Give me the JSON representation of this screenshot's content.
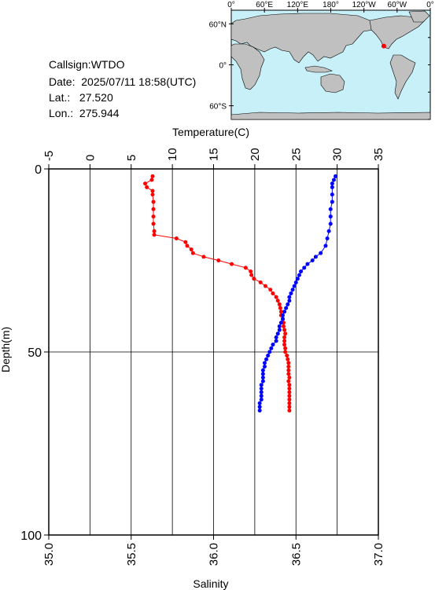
{
  "station": {
    "callsign_label": "Callsign:",
    "callsign": "WTDO",
    "date_label": "Date:",
    "date": "2025/07/11 18:58(UTC)",
    "lat_label": "Lat.:",
    "lat": "27.520",
    "lon_label": "Lon.:",
    "lon": "275.944"
  },
  "map": {
    "top_ticks": [
      "0°",
      "60°E",
      "120°E",
      "180°",
      "120°W",
      "60°W",
      "0°"
    ],
    "left_ticks": [
      "60°N",
      "0°",
      "60°S"
    ],
    "marker": {
      "lat": 27.52,
      "lon": 275.944
    },
    "colors": {
      "ocean": "#c8f0f8",
      "land": "#c0c0c0",
      "marker": "#ff0000"
    }
  },
  "chart_data": {
    "type": "line",
    "ylabel": "Depth(m)",
    "ylim": [
      100,
      0
    ],
    "yticks": [
      "0",
      "50",
      "100"
    ],
    "temperature_axis": {
      "label": "Temperature(C)",
      "lim": [
        -5,
        35
      ],
      "ticks": [
        "-5",
        "0",
        "5",
        "10",
        "15",
        "20",
        "25",
        "30",
        "35"
      ]
    },
    "salinity_axis": {
      "label": "Salinity",
      "lim": [
        35.0,
        37.0
      ],
      "ticks": [
        "35.0",
        "35.5",
        "36.0",
        "36.5",
        "37.0"
      ]
    },
    "grid": true,
    "series": [
      {
        "color": "#ff0000",
        "axis": "temperature",
        "depth": [
          2,
          3,
          4,
          5,
          6,
          7,
          9,
          11,
          13,
          15,
          17,
          18,
          19,
          20,
          21,
          22,
          23,
          24,
          25,
          26,
          27,
          28,
          29,
          30,
          31,
          32,
          33,
          34,
          35,
          36,
          37,
          38,
          39,
          40,
          41,
          42,
          43,
          44,
          45,
          46,
          47,
          48,
          49,
          50,
          51,
          52,
          53,
          54,
          55,
          56,
          57,
          58,
          59,
          60,
          61,
          62,
          63,
          64,
          65,
          66
        ],
        "values": [
          7.6,
          7.5,
          6.7,
          6.9,
          7.6,
          7.6,
          7.7,
          7.7,
          7.7,
          7.7,
          7.8,
          7.8,
          10.5,
          11.6,
          11.8,
          12.3,
          12.5,
          13.8,
          15.6,
          17.2,
          18.9,
          19.5,
          19.6,
          19.9,
          20.7,
          21.3,
          21.9,
          22.2,
          22.6,
          22.8,
          23.0,
          23.1,
          23.2,
          23.2,
          23.4,
          23.5,
          23.5,
          23.6,
          23.7,
          23.6,
          23.6,
          23.6,
          23.7,
          23.7,
          23.9,
          24.0,
          24.1,
          24.1,
          24.1,
          24.1,
          24.2,
          24.1,
          24.2,
          24.2,
          24.2,
          24.2,
          24.2,
          24.2,
          24.2,
          24.2
        ]
      },
      {
        "color": "#0000ff",
        "axis": "salinity",
        "depth": [
          2,
          3,
          4,
          5,
          7,
          9,
          11,
          13,
          15,
          17,
          19,
          21,
          23,
          24,
          25,
          26,
          27,
          28,
          29,
          30,
          31,
          32,
          33,
          34,
          35,
          36,
          37,
          38,
          39,
          40,
          41,
          42,
          43,
          44,
          45,
          46,
          47,
          48,
          49,
          50,
          51,
          52,
          53,
          54,
          55,
          56,
          57,
          58,
          59,
          60,
          61,
          62,
          63,
          64,
          65,
          66
        ],
        "values": [
          36.74,
          36.73,
          36.72,
          36.72,
          36.72,
          36.72,
          36.71,
          36.71,
          36.71,
          36.7,
          36.69,
          36.68,
          36.65,
          36.62,
          36.6,
          36.57,
          36.55,
          36.53,
          36.52,
          36.51,
          36.5,
          36.49,
          36.48,
          36.47,
          36.46,
          36.46,
          36.45,
          36.44,
          36.43,
          36.42,
          36.42,
          36.41,
          36.4,
          36.4,
          36.39,
          36.38,
          36.38,
          36.36,
          36.35,
          36.34,
          36.33,
          36.32,
          36.31,
          36.31,
          36.3,
          36.3,
          36.3,
          36.3,
          36.29,
          36.29,
          36.29,
          36.29,
          36.29,
          36.28,
          36.28,
          36.28
        ]
      }
    ]
  }
}
